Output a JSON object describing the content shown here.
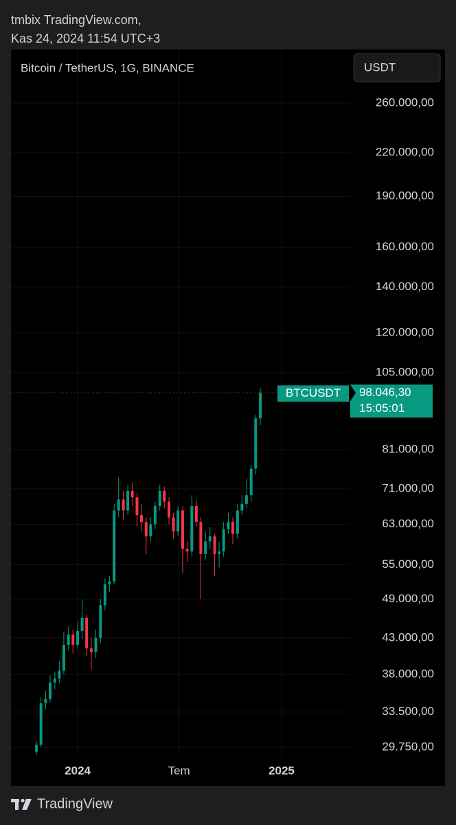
{
  "header": {
    "user": "tmbix TradingView.com,",
    "timestamp": "Kas 24, 2024 11:54 UTC+3"
  },
  "chart_data": {
    "type": "candlestick",
    "title": "Bitcoin / TetherUS, 1G, BINANCE",
    "currency": "USDT",
    "log_scale": true,
    "grid": true,
    "x": [
      2023.798,
      2023.82,
      2023.843,
      2023.865,
      2023.888,
      2023.91,
      2023.932,
      2023.955,
      2023.977,
      2024.0,
      2024.022,
      2024.044,
      2024.067,
      2024.089,
      2024.112,
      2024.134,
      2024.156,
      2024.179,
      2024.201,
      2024.224,
      2024.246,
      2024.268,
      2024.291,
      2024.313,
      2024.336,
      2024.358,
      2024.38,
      2024.403,
      2024.425,
      2024.448,
      2024.47,
      2024.492,
      2024.515,
      2024.537,
      2024.56,
      2024.582,
      2024.604,
      2024.627,
      2024.649,
      2024.672,
      2024.694,
      2024.716,
      2024.739,
      2024.761,
      2024.784,
      2024.806,
      2024.828,
      2024.851,
      2024.873,
      2024.896
    ],
    "series": [
      {
        "name": "BTCUSDT",
        "up_color": "#089981",
        "down_color": "#f23645",
        "open": [
          29300,
          30000,
          34500,
          35000,
          37000,
          37500,
          38500,
          42000,
          43500,
          42000,
          44000,
          46000,
          41500,
          41000,
          43000,
          48000,
          51500,
          52000,
          66000,
          68500,
          66000,
          70500,
          69000,
          65000,
          63500,
          60500,
          63000,
          67000,
          70500,
          68000,
          64500,
          61500,
          66000,
          58000,
          57500,
          67000,
          63500,
          57000,
          59500,
          60500,
          57000,
          57500,
          62000,
          63500,
          61000,
          66000,
          67500,
          69500,
          76000,
          90000
        ],
        "high": [
          30400,
          35200,
          36000,
          37900,
          38400,
          39800,
          43800,
          44700,
          44200,
          45500,
          48900,
          46500,
          43000,
          44200,
          49000,
          52500,
          53000,
          67500,
          73800,
          70500,
          72000,
          72500,
          70000,
          67500,
          64500,
          64500,
          68000,
          72000,
          71500,
          69000,
          65500,
          67000,
          67000,
          59500,
          69500,
          68500,
          64500,
          61500,
          62500,
          61000,
          59500,
          63500,
          65500,
          64500,
          67500,
          69500,
          73500,
          77000,
          91000,
          99600
        ],
        "low": [
          29000,
          29800,
          33800,
          34600,
          36200,
          36900,
          38000,
          41200,
          40800,
          41500,
          42800,
          40500,
          38600,
          40200,
          42300,
          47200,
          50200,
          51500,
          64500,
          64000,
          65000,
          67000,
          62500,
          61500,
          57000,
          59500,
          62000,
          66000,
          66500,
          63000,
          60000,
          60500,
          53500,
          55500,
          56500,
          62500,
          49000,
          56000,
          58000,
          53000,
          54500,
          56500,
          61000,
          59000,
          60000,
          65000,
          66500,
          68000,
          74500,
          88000
        ],
        "close": [
          30000,
          34500,
          35000,
          37000,
          37500,
          38500,
          42000,
          43500,
          42000,
          44000,
          46000,
          41500,
          41000,
          43000,
          48000,
          51500,
          52000,
          66000,
          68500,
          66000,
          70500,
          69000,
          65000,
          63500,
          60500,
          63000,
          67000,
          70500,
          68000,
          64500,
          61500,
          66000,
          58000,
          57500,
          67000,
          63500,
          57000,
          59500,
          60500,
          57000,
          57500,
          62000,
          63500,
          61000,
          66000,
          67500,
          69500,
          76000,
          90000,
          98046.3
        ]
      }
    ],
    "last_price": {
      "value": 98046.3,
      "label": "98.046,30"
    },
    "countdown": "15:05:01",
    "ylim": [
      28870,
      311300
    ],
    "yticks": [
      {
        "value": 260000,
        "label": "260.000,00"
      },
      {
        "value": 220000,
        "label": "220.000,00"
      },
      {
        "value": 190000,
        "label": "190.000,00"
      },
      {
        "value": 160000,
        "label": "160.000,00"
      },
      {
        "value": 140000,
        "label": "140.000,00"
      },
      {
        "value": 120000,
        "label": "120.000,00"
      },
      {
        "value": 105000,
        "label": "105.000,00"
      },
      {
        "value": 81000,
        "label": "81.000,00"
      },
      {
        "value": 71000,
        "label": "71.000,00"
      },
      {
        "value": 63000,
        "label": "63.000,00"
      },
      {
        "value": 55000,
        "label": "55.000,00"
      },
      {
        "value": 49000,
        "label": "49.000,00"
      },
      {
        "value": 43000,
        "label": "43.000,00"
      },
      {
        "value": 38000,
        "label": "38.000,00"
      },
      {
        "value": 33500,
        "label": "33.500,00"
      },
      {
        "value": 29750,
        "label": "29.750,00"
      }
    ],
    "xlim": [
      2023.673,
      2025.337
    ],
    "xticks": [
      2024,
      {
        "value": 2024.497,
        "label": "Tem"
      },
      2025
    ]
  },
  "footer": {
    "brand": "TradingView"
  }
}
